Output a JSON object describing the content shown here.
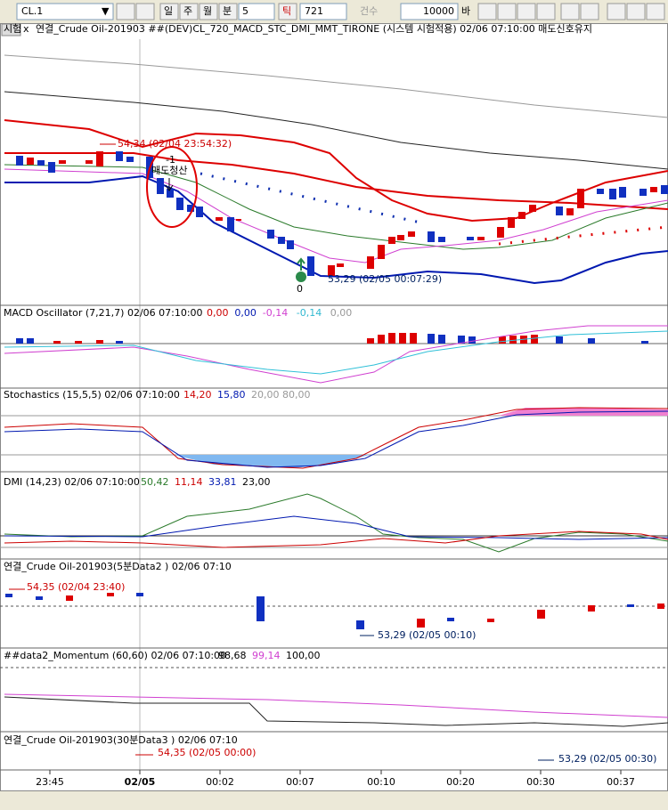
{
  "toolbar": {
    "symbol": "CL.1",
    "buttons": [
      "일",
      "주",
      "월",
      "분"
    ],
    "period": "5",
    "tick_button": "틱",
    "tick_value": "721",
    "count_label": "건수",
    "count_value": "10000",
    "bar_label": "바"
  },
  "main": {
    "tag": "시험",
    "header": "연결_Crude Oil-201903 ##(DEV)CL_720_MACD_STC_DMI_MMT_TIRONE (시스템 시험적용) 02/06 07:10:00 매도신호유지",
    "high_label": "54,34 (02/04 23:54:32)",
    "signal_value": "-1",
    "signal_label": "매도청산",
    "exit_value": "0",
    "low_label": "53,29 (02/05 00:07:29)"
  },
  "macd": {
    "header": "MACD Oscillator  (7,21,7) 02/06 07:10:00",
    "values": [
      "0,00",
      "0,00",
      "-0,14",
      "-0,14",
      "0,00"
    ]
  },
  "stochastics": {
    "header": "Stochastics  (15,5,5) 02/06 07:10:00",
    "values": [
      "14,20",
      "15,80",
      "20,00 80,00"
    ]
  },
  "dmi": {
    "header": "DMI  (14,23) 02/06 07:10:00",
    "values": [
      "50,42",
      "11,14",
      "33,81",
      "23,00"
    ]
  },
  "data2": {
    "header": "연결_Crude Oil-201903(5분Data2 ) 02/06 07:10",
    "high_label": "54,35 (02/04 23:40)",
    "low_label": "53,29 (02/05 00:10)"
  },
  "momentum": {
    "header": "##data2_Momentum  (60,60) 02/06 07:10:00",
    "values": [
      "98,68",
      "99,14",
      "100,00"
    ]
  },
  "data3": {
    "header": "연결_Crude Oil-201903(30분Data3 ) 02/06 07:10",
    "high_label": "54,35 (02/05 00:00)",
    "low_label": "53,29 (02/05 00:30)"
  },
  "x_labels": [
    "23:45",
    "02/05",
    "00:02",
    "00:07",
    "00:10",
    "00:20",
    "00:30",
    "00:37"
  ]
}
